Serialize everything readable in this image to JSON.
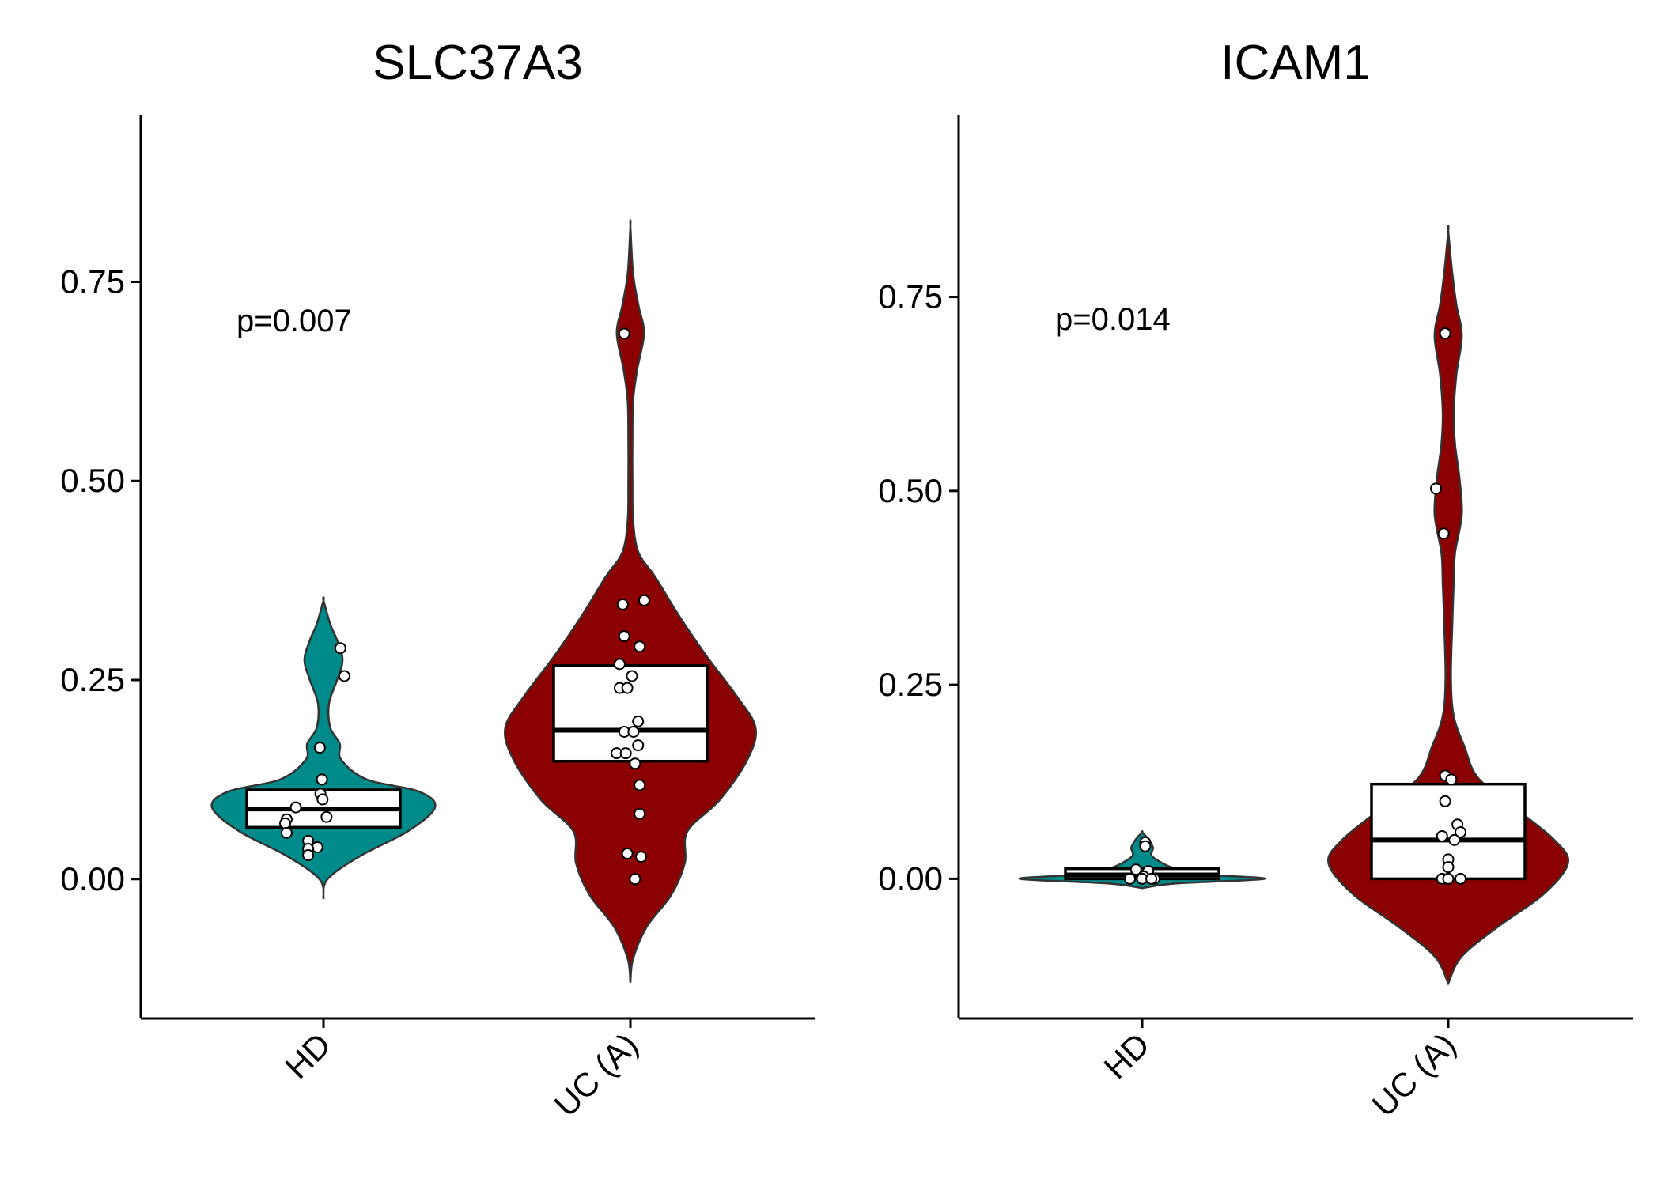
{
  "chart_data": [
    {
      "type": "violin",
      "title": "SLC37A3",
      "xlabel": "",
      "ylabel": "",
      "categories": [
        "HD",
        "UC (A)"
      ],
      "colors": [
        "#008B8B",
        "#8B0000"
      ],
      "ylim": [
        -0.175,
        0.96
      ],
      "yticks": [
        0.0,
        0.25,
        0.5,
        0.75
      ],
      "ytick_labels": [
        "0.00",
        "0.25",
        "0.50",
        "0.75"
      ],
      "annotation": "p=0.007",
      "annotation_at": [
        0.3,
        0.7
      ],
      "groups": [
        {
          "name": "HD",
          "violin_range": [
            -0.025,
            0.35
          ],
          "violin_profile": [
            [
              -0.025,
              0.0
            ],
            [
              0.0,
              0.03
            ],
            [
              0.03,
              0.28
            ],
            [
              0.06,
              0.62
            ],
            [
              0.09,
              0.82
            ],
            [
              0.11,
              0.7
            ],
            [
              0.125,
              0.32
            ],
            [
              0.15,
              0.13
            ],
            [
              0.17,
              0.12
            ],
            [
              0.19,
              0.05
            ],
            [
              0.22,
              0.04
            ],
            [
              0.25,
              0.1
            ],
            [
              0.275,
              0.14
            ],
            [
              0.3,
              0.1
            ],
            [
              0.32,
              0.05
            ],
            [
              0.35,
              0.0
            ]
          ],
          "box": {
            "q1": 0.065,
            "median": 0.088,
            "q3": 0.112
          },
          "points": [
            [
              0.055,
              0.29
            ],
            [
              0.068,
              0.255
            ],
            [
              -0.012,
              0.165
            ],
            [
              -0.005,
              0.125
            ],
            [
              -0.01,
              0.107
            ],
            [
              -0.003,
              0.1
            ],
            [
              -0.09,
              0.09
            ],
            [
              0.01,
              0.078
            ],
            [
              -0.12,
              0.075
            ],
            [
              -0.125,
              0.07
            ],
            [
              -0.12,
              0.058
            ],
            [
              -0.05,
              0.048
            ],
            [
              -0.02,
              0.04
            ],
            [
              -0.05,
              0.038
            ],
            [
              -0.05,
              0.03
            ]
          ]
        },
        {
          "name": "UC (A)",
          "violin_range": [
            -0.13,
            0.82
          ],
          "violin_profile": [
            [
              -0.13,
              0.0
            ],
            [
              -0.1,
              0.02
            ],
            [
              -0.06,
              0.12
            ],
            [
              -0.02,
              0.3
            ],
            [
              0.02,
              0.4
            ],
            [
              0.06,
              0.42
            ],
            [
              0.1,
              0.66
            ],
            [
              0.15,
              0.86
            ],
            [
              0.19,
              0.92
            ],
            [
              0.23,
              0.78
            ],
            [
              0.28,
              0.56
            ],
            [
              0.33,
              0.36
            ],
            [
              0.38,
              0.18
            ],
            [
              0.41,
              0.06
            ],
            [
              0.45,
              0.02
            ],
            [
              0.5,
              0.015
            ],
            [
              0.55,
              0.015
            ],
            [
              0.6,
              0.02
            ],
            [
              0.64,
              0.05
            ],
            [
              0.685,
              0.1
            ],
            [
              0.72,
              0.06
            ],
            [
              0.76,
              0.02
            ],
            [
              0.82,
              0.0
            ]
          ],
          "box": {
            "q1": 0.148,
            "median": 0.187,
            "q3": 0.268
          },
          "points": [
            [
              -0.02,
              0.685
            ],
            [
              0.045,
              0.35
            ],
            [
              -0.025,
              0.345
            ],
            [
              -0.02,
              0.305
            ],
            [
              0.03,
              0.292
            ],
            [
              -0.035,
              0.27
            ],
            [
              0.005,
              0.255
            ],
            [
              -0.035,
              0.24
            ],
            [
              -0.01,
              0.24
            ],
            [
              0.025,
              0.198
            ],
            [
              -0.02,
              0.185
            ],
            [
              0.01,
              0.185
            ],
            [
              0.025,
              0.168
            ],
            [
              -0.045,
              0.158
            ],
            [
              -0.015,
              0.158
            ],
            [
              0.015,
              0.145
            ],
            [
              0.03,
              0.118
            ],
            [
              0.03,
              0.082
            ],
            [
              -0.01,
              0.032
            ],
            [
              0.035,
              0.028
            ],
            [
              0.015,
              0.0
            ]
          ]
        }
      ]
    },
    {
      "type": "violin",
      "title": "ICAM1",
      "xlabel": "",
      "ylabel": "",
      "categories": [
        "HD",
        "UC (A)"
      ],
      "colors": [
        "#008B8B",
        "#8B0000"
      ],
      "ylim": [
        -0.18,
        0.985
      ],
      "yticks": [
        0.0,
        0.25,
        0.5,
        0.75
      ],
      "ytick_labels": [
        "0.00",
        "0.25",
        "0.50",
        "0.75"
      ],
      "annotation": "p=0.014",
      "annotation_at": [
        0.3,
        0.72
      ],
      "groups": [
        {
          "name": "HD",
          "violin_range": [
            -0.012,
            0.06
          ],
          "violin_profile": [
            [
              -0.012,
              0.0
            ],
            [
              -0.006,
              0.25
            ],
            [
              0.0,
              0.9
            ],
            [
              0.006,
              0.4
            ],
            [
              0.012,
              0.26
            ],
            [
              0.02,
              0.15
            ],
            [
              0.03,
              0.07
            ],
            [
              0.04,
              0.08
            ],
            [
              0.05,
              0.05
            ],
            [
              0.06,
              0.0
            ]
          ],
          "box": {
            "q1": 0.0,
            "median": 0.005,
            "q3": 0.013
          },
          "points": [
            [
              0.01,
              0.047
            ],
            [
              0.01,
              0.042
            ],
            [
              -0.02,
              0.012
            ],
            [
              0.02,
              0.01
            ],
            [
              0.005,
              0.003
            ],
            [
              -0.04,
              0.0
            ],
            [
              0.0,
              0.0
            ],
            [
              0.04,
              0.0
            ],
            [
              0.03,
              0.0
            ]
          ]
        },
        {
          "name": "UC (A)",
          "violin_range": [
            -0.135,
            0.835
          ],
          "violin_profile": [
            [
              -0.135,
              0.0
            ],
            [
              -0.1,
              0.1
            ],
            [
              -0.06,
              0.38
            ],
            [
              -0.02,
              0.7
            ],
            [
              0.02,
              0.88
            ],
            [
              0.05,
              0.78
            ],
            [
              0.09,
              0.5
            ],
            [
              0.13,
              0.22
            ],
            [
              0.17,
              0.12
            ],
            [
              0.21,
              0.04
            ],
            [
              0.26,
              0.02
            ],
            [
              0.33,
              0.03
            ],
            [
              0.38,
              0.04
            ],
            [
              0.42,
              0.05
            ],
            [
              0.47,
              0.1
            ],
            [
              0.52,
              0.08
            ],
            [
              0.56,
              0.05
            ],
            [
              0.6,
              0.04
            ],
            [
              0.65,
              0.06
            ],
            [
              0.7,
              0.1
            ],
            [
              0.74,
              0.06
            ],
            [
              0.78,
              0.03
            ],
            [
              0.835,
              0.0
            ]
          ],
          "box": {
            "q1": 0.0,
            "median": 0.05,
            "q3": 0.122
          },
          "points": [
            [
              -0.01,
              0.703
            ],
            [
              -0.01,
              0.703
            ],
            [
              -0.04,
              0.503
            ],
            [
              -0.015,
              0.445
            ],
            [
              -0.01,
              0.133
            ],
            [
              0.01,
              0.128
            ],
            [
              -0.01,
              0.1
            ],
            [
              0.03,
              0.07
            ],
            [
              0.04,
              0.06
            ],
            [
              -0.02,
              0.055
            ],
            [
              0.02,
              0.05
            ],
            [
              0.0,
              0.025
            ],
            [
              0.0,
              0.015
            ],
            [
              -0.02,
              0.0
            ],
            [
              0.0,
              0.0
            ],
            [
              0.04,
              0.0
            ]
          ]
        }
      ]
    }
  ]
}
